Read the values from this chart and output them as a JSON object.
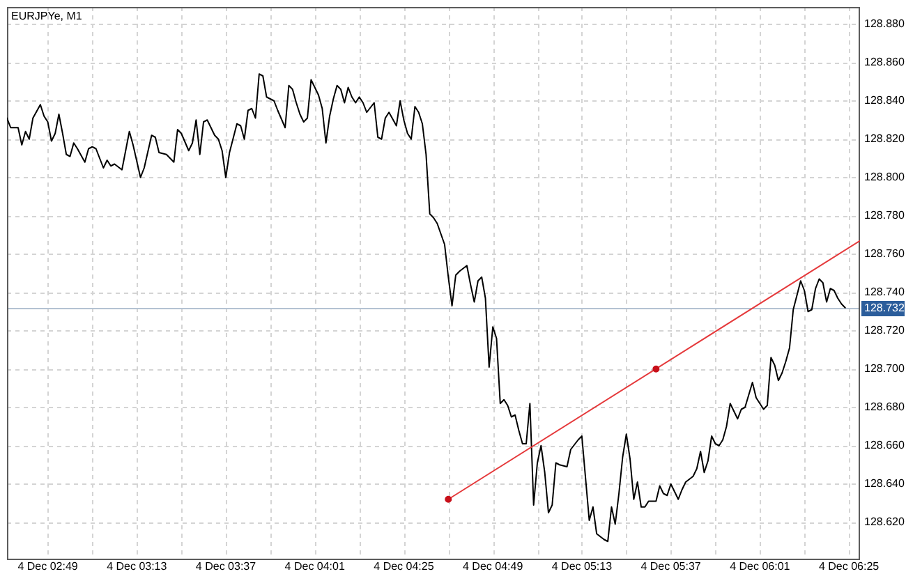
{
  "chart_data": {
    "type": "line",
    "title": "EURJPYe, M1",
    "x": [
      "--12-04T02:38",
      "--12-04T02:39",
      "--12-04T02:41",
      "--12-04T02:42",
      "--12-04T02:43",
      "--12-04T02:44",
      "--12-04T02:45",
      "--12-04T02:47",
      "--12-04T02:48",
      "--12-04T02:49",
      "--12-04T02:50",
      "--12-04T02:51",
      "--12-04T02:52",
      "--12-04T02:53",
      "--12-04T02:54",
      "--12-04T02:55",
      "--12-04T02:56",
      "--12-04T02:57",
      "--12-04T02:59",
      "--12-04T03:00",
      "--12-04T03:01",
      "--12-04T03:02",
      "--12-04T03:04",
      "--12-04T03:05",
      "--12-04T03:06",
      "--12-04T03:07",
      "--12-04T03:09",
      "--12-04T03:11",
      "--12-04T03:12",
      "--12-04T03:14",
      "--12-04T03:15",
      "--12-04T03:17",
      "--12-04T03:18",
      "--12-04T03:19",
      "--12-04T03:21",
      "--12-04T03:23",
      "--12-04T03:24",
      "--12-04T03:25",
      "--12-04T03:27",
      "--12-04T03:28",
      "--12-04T03:29",
      "--12-04T03:30",
      "--12-04T03:31",
      "--12-04T03:32",
      "--12-04T03:34",
      "--12-04T03:35",
      "--12-04T03:36",
      "--12-04T03:37",
      "--12-04T03:38",
      "--12-04T03:40",
      "--12-04T03:41",
      "--12-04T03:42",
      "--12-04T03:43",
      "--12-04T03:44",
      "--12-04T03:45",
      "--12-04T03:46",
      "--12-04T03:47",
      "--12-04T03:48",
      "--12-04T03:49",
      "--12-04T03:50",
      "--12-04T03:51",
      "--12-04T03:53",
      "--12-04T03:54",
      "--12-04T03:55",
      "--12-04T03:56",
      "--12-04T03:57",
      "--12-04T03:58",
      "--12-04T03:59",
      "--12-04T04:00",
      "--12-04T04:02",
      "--12-04T04:03",
      "--12-04T04:04",
      "--12-04T04:05",
      "--12-04T04:06",
      "--12-04T04:07",
      "--12-04T04:08",
      "--12-04T04:09",
      "--12-04T04:10",
      "--12-04T04:11",
      "--12-04T04:12",
      "--12-04T04:13",
      "--12-04T04:14",
      "--12-04T04:15",
      "--12-04T04:17",
      "--12-04T04:18",
      "--12-04T04:19",
      "--12-04T04:20",
      "--12-04T04:21",
      "--12-04T04:23",
      "--12-04T04:24",
      "--12-04T04:25",
      "--12-04T04:26",
      "--12-04T04:27",
      "--12-04T04:28",
      "--12-04T04:29",
      "--12-04T04:30",
      "--12-04T04:31",
      "--12-04T04:32",
      "--12-04T04:33",
      "--12-04T04:34",
      "--12-04T04:36",
      "--12-04T04:37",
      "--12-04T04:38",
      "--12-04T04:39",
      "--12-04T04:40",
      "--12-04T04:42",
      "--12-04T04:43",
      "--12-04T04:44",
      "--12-04T04:45",
      "--12-04T04:46",
      "--12-04T04:47",
      "--12-04T04:48",
      "--12-04T04:49",
      "--12-04T04:50",
      "--12-04T04:51",
      "--12-04T04:52",
      "--12-04T04:53",
      "--12-04T04:54",
      "--12-04T04:55",
      "--12-04T04:56",
      "--12-04T04:57",
      "--12-04T04:58",
      "--12-04T04:59",
      "--12-04T05:00",
      "--12-04T05:01",
      "--12-04T05:02",
      "--12-04T05:03",
      "--12-04T05:04",
      "--12-04T05:05",
      "--12-04T05:06",
      "--12-04T05:07",
      "--12-04T05:09",
      "--12-04T05:10",
      "--12-04T05:12",
      "--12-04T05:13",
      "--12-04T05:15",
      "--12-04T05:16",
      "--12-04T05:17",
      "--12-04T05:19",
      "--12-04T05:20",
      "--12-04T05:21",
      "--12-04T05:22",
      "--12-04T05:23",
      "--12-04T05:24",
      "--12-04T05:25",
      "--12-04T05:26",
      "--12-04T05:27",
      "--12-04T05:28",
      "--12-04T05:29",
      "--12-04T05:30",
      "--12-04T05:31",
      "--12-04T05:33",
      "--12-04T05:34",
      "--12-04T05:35",
      "--12-04T05:36",
      "--12-04T05:37",
      "--12-04T05:38",
      "--12-04T05:39",
      "--12-04T05:40",
      "--12-04T05:41",
      "--12-04T05:43",
      "--12-04T05:44",
      "--12-04T05:45",
      "--12-04T05:46",
      "--12-04T05:47",
      "--12-04T05:48",
      "--12-04T05:49",
      "--12-04T05:50",
      "--12-04T05:51",
      "--12-04T05:52",
      "--12-04T05:53",
      "--12-04T05:55",
      "--12-04T05:56",
      "--12-04T05:57",
      "--12-04T05:59",
      "--12-04T06:00",
      "--12-04T06:02",
      "--12-04T06:03",
      "--12-04T06:04",
      "--12-04T06:05",
      "--12-04T06:06",
      "--12-04T06:07",
      "--12-04T06:08",
      "--12-04T06:09",
      "--12-04T06:10",
      "--12-04T06:12",
      "--12-04T06:13",
      "--12-04T06:14",
      "--12-04T06:15",
      "--12-04T06:16",
      "--12-04T06:17",
      "--12-04T06:18",
      "--12-04T06:19",
      "--12-04T06:20",
      "--12-04T06:21",
      "--12-04T06:22",
      "--12-04T06:23",
      "--12-04T06:24"
    ],
    "series": [
      {
        "color": "#000000",
        "values": [
          128.831,
          128.826,
          128.826,
          128.817,
          128.824,
          128.82,
          128.831,
          128.838,
          128.832,
          128.829,
          128.819,
          128.823,
          128.833,
          128.823,
          128.812,
          128.811,
          128.818,
          128.815,
          128.808,
          128.815,
          128.816,
          128.815,
          128.805,
          128.809,
          128.806,
          128.807,
          128.804,
          128.824,
          128.817,
          128.8,
          128.805,
          128.822,
          128.821,
          128.813,
          128.812,
          128.808,
          128.825,
          128.823,
          128.814,
          128.818,
          128.83,
          128.812,
          128.829,
          128.83,
          128.822,
          128.82,
          128.814,
          128.8,
          128.813,
          128.828,
          128.827,
          128.82,
          128.835,
          128.836,
          128.831,
          128.854,
          128.853,
          128.842,
          128.841,
          128.84,
          128.835,
          128.826,
          128.848,
          128.846,
          128.839,
          128.833,
          128.829,
          128.831,
          128.851,
          128.843,
          128.836,
          128.818,
          128.832,
          128.841,
          128.848,
          128.846,
          128.839,
          128.847,
          128.842,
          128.839,
          128.842,
          128.839,
          128.834,
          128.839,
          128.821,
          128.82,
          128.831,
          128.834,
          128.827,
          128.84,
          128.83,
          128.823,
          128.82,
          128.837,
          128.834,
          128.828,
          128.812,
          128.781,
          128.779,
          128.776,
          128.765,
          128.748,
          128.733,
          128.749,
          128.751,
          128.754,
          128.744,
          128.735,
          128.746,
          128.748,
          128.737,
          128.701,
          128.722,
          128.716,
          128.682,
          128.684,
          128.681,
          128.675,
          128.676,
          128.668,
          128.661,
          128.661,
          128.682,
          128.629,
          128.651,
          128.66,
          128.646,
          128.625,
          128.629,
          128.651,
          128.65,
          128.649,
          128.658,
          128.663,
          128.665,
          128.621,
          128.628,
          128.614,
          128.611,
          128.61,
          128.628,
          128.619,
          128.635,
          128.654,
          128.666,
          128.653,
          128.632,
          128.641,
          128.628,
          128.628,
          128.631,
          128.631,
          128.639,
          128.635,
          128.634,
          128.64,
          128.636,
          128.632,
          128.637,
          128.641,
          128.644,
          128.648,
          128.657,
          128.646,
          128.652,
          128.665,
          128.661,
          128.66,
          128.663,
          128.67,
          128.682,
          128.674,
          128.679,
          128.68,
          128.693,
          128.685,
          128.679,
          128.681,
          128.706,
          128.702,
          128.694,
          128.698,
          128.704,
          128.711,
          128.731,
          128.746,
          128.741,
          128.73,
          128.731,
          128.742,
          128.747,
          128.745,
          128.735,
          128.742,
          128.741,
          128.737,
          128.734,
          128.732
        ]
      },
      {
        "type": "line",
        "color": "#e5393b",
        "x": [
          "--12-04T04:37",
          "--12-04T06:28"
        ],
        "values": [
          128.632,
          128.767
        ]
      },
      {
        "type": "scatter",
        "color": "#c8101a",
        "x": [
          "--12-04T04:37",
          "--12-04T05:33"
        ],
        "values": [
          128.632,
          128.7
        ],
        "marker": "circle"
      }
    ],
    "xlim": [
      "--12-04T02:38",
      "--12-04T06:28"
    ],
    "xticks": [
      {
        "value": "--12-04T02:49",
        "label": "4 Dec 02:49"
      },
      {
        "value": "--12-04T03:01",
        "label": null
      },
      {
        "value": "--12-04T03:13",
        "label": "4 Dec 03:13"
      },
      {
        "value": "--12-04T03:25",
        "label": null
      },
      {
        "value": "--12-04T03:37",
        "label": "4 Dec 03:37"
      },
      {
        "value": "--12-04T03:49",
        "label": null
      },
      {
        "value": "--12-04T04:01",
        "label": "4 Dec 04:01"
      },
      {
        "value": "--12-04T04:13",
        "label": null
      },
      {
        "value": "--12-04T04:25",
        "label": "4 Dec 04:25"
      },
      {
        "value": "--12-04T04:37",
        "label": null
      },
      {
        "value": "--12-04T04:49",
        "label": "4 Dec 04:49"
      },
      {
        "value": "--12-04T05:01",
        "label": null
      },
      {
        "value": "--12-04T05:13",
        "label": "4 Dec 05:13"
      },
      {
        "value": "--12-04T05:25",
        "label": null
      },
      {
        "value": "--12-04T05:37",
        "label": "4 Dec 05:37"
      },
      {
        "value": "--12-04T05:49",
        "label": null
      },
      {
        "value": "--12-04T06:01",
        "label": "4 Dec 06:01"
      },
      {
        "value": "--12-04T06:13",
        "label": null
      },
      {
        "value": "--12-04T06:25",
        "label": "4 Dec 06:25"
      }
    ],
    "ylim": [
      128.601,
      128.889
    ],
    "yticks": [
      {
        "value": 128.62,
        "label": "128.620"
      },
      {
        "value": 128.64,
        "label": "128.640"
      },
      {
        "value": 128.66,
        "label": "128.660"
      },
      {
        "value": 128.68,
        "label": "128.680"
      },
      {
        "value": 128.7,
        "label": "128.700"
      },
      {
        "value": 128.72,
        "label": "128.720"
      },
      {
        "value": 128.74,
        "label": "128.740"
      },
      {
        "value": 128.76,
        "label": "128.760"
      },
      {
        "value": 128.78,
        "label": "128.780"
      },
      {
        "value": 128.8,
        "label": "128.800"
      },
      {
        "value": 128.82,
        "label": "128.820"
      },
      {
        "value": 128.84,
        "label": "128.840"
      },
      {
        "value": 128.86,
        "label": "128.860"
      },
      {
        "value": 128.88,
        "label": "128.880"
      }
    ],
    "ref_lines": [
      {
        "axis": "y",
        "value": 128.732,
        "label": "128.732",
        "color": "#b4c2d2"
      }
    ],
    "grid": true
  }
}
